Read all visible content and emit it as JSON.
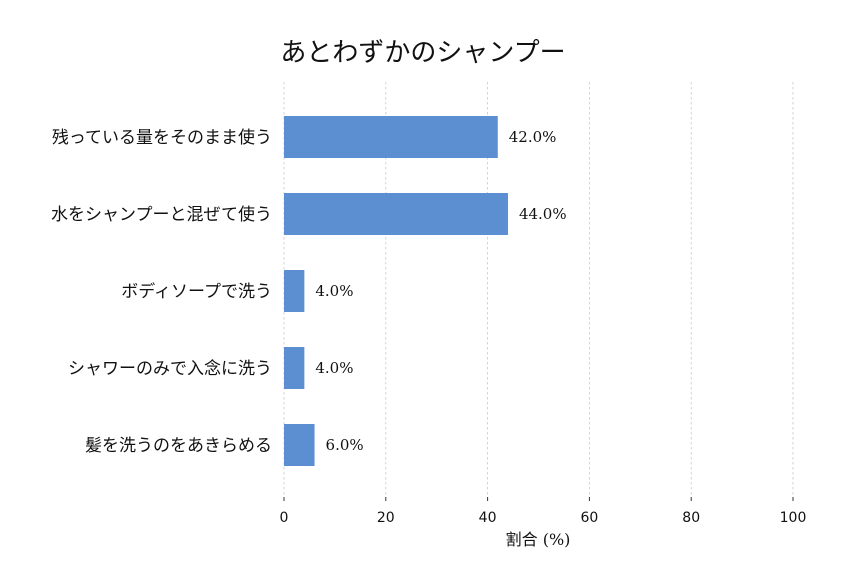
{
  "chart_data": {
    "type": "bar",
    "orientation": "horizontal",
    "title": "あとわずかのシャンプー",
    "xlabel": "割合 (%)",
    "ylabel": "",
    "categories": [
      "残っている量をそのまま使う",
      "水をシャンプーと混ぜて使う",
      "ボディソープで洗う",
      "シャワーのみで入念に洗う",
      "髪を洗うのをあきらめる"
    ],
    "values": [
      42.0,
      44.0,
      4.0,
      4.0,
      6.0
    ],
    "value_labels": [
      "42.0%",
      "44.0%",
      "4.0%",
      "4.0%",
      "6.0%"
    ],
    "xlim": [
      0,
      100
    ],
    "xticks": [
      0,
      20,
      40,
      60,
      80,
      100
    ],
    "xtick_labels": [
      "0",
      "20",
      "40",
      "60",
      "80",
      "100"
    ],
    "grid": "vertical dashed",
    "legend": "none",
    "colors": {
      "bar": "#5b8fd1",
      "grid": "#c8c8c8",
      "text": "#111111"
    }
  }
}
